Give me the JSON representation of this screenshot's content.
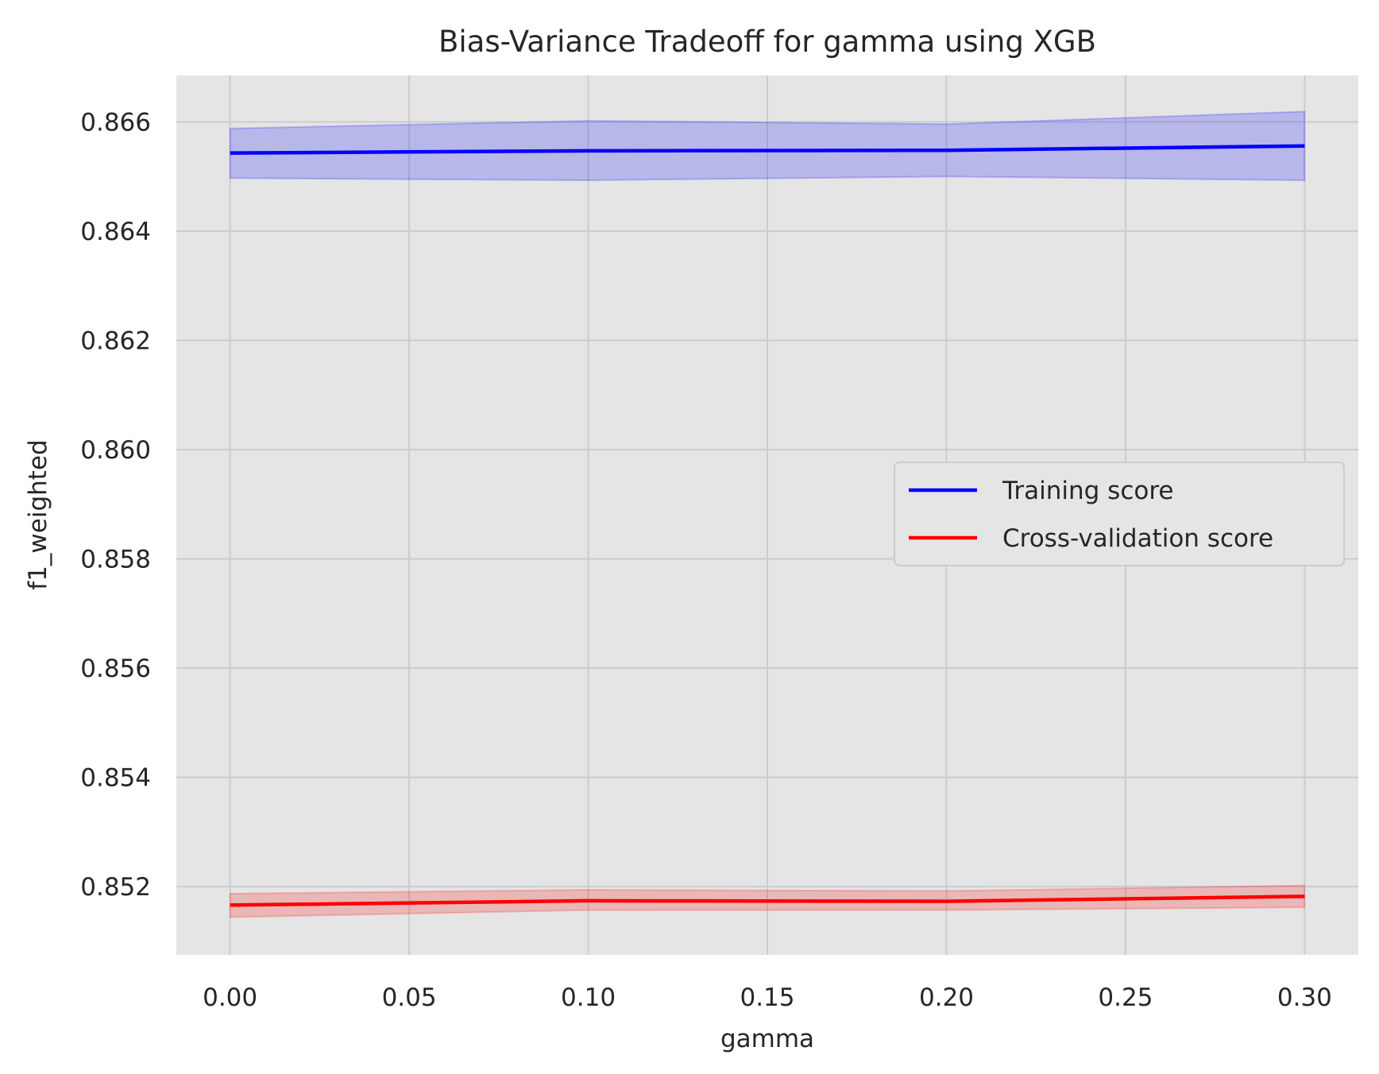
{
  "chart_data": {
    "type": "line",
    "title": "Bias-Variance Tradeoff for gamma using XGB",
    "xlabel": "gamma",
    "ylabel": "f1_weighted",
    "x": [
      0.0,
      0.1,
      0.2,
      0.3
    ],
    "xlim": [
      -0.015,
      0.315
    ],
    "ylim": [
      0.85075,
      0.86685
    ],
    "xticks": [
      "0.00",
      "0.05",
      "0.10",
      "0.15",
      "0.20",
      "0.25",
      "0.30"
    ],
    "yticks": [
      "0.852",
      "0.854",
      "0.856",
      "0.858",
      "0.860",
      "0.862",
      "0.864",
      "0.866"
    ],
    "grid": true,
    "legend_position": "center-right",
    "series": [
      {
        "name": "Training score",
        "color": "#0000ff",
        "values": [
          0.86543,
          0.86547,
          0.86548,
          0.86556
        ],
        "band_lower": [
          0.86497,
          0.86493,
          0.865,
          0.86493
        ],
        "band_upper": [
          0.86588,
          0.86602,
          0.86596,
          0.86619
        ]
      },
      {
        "name": "Cross-validation score",
        "color": "#ff0000",
        "values": [
          0.85166,
          0.85174,
          0.85173,
          0.85182
        ],
        "band_lower": [
          0.85144,
          0.85157,
          0.85157,
          0.85162
        ],
        "band_upper": [
          0.85187,
          0.85194,
          0.85192,
          0.85202
        ]
      }
    ]
  }
}
